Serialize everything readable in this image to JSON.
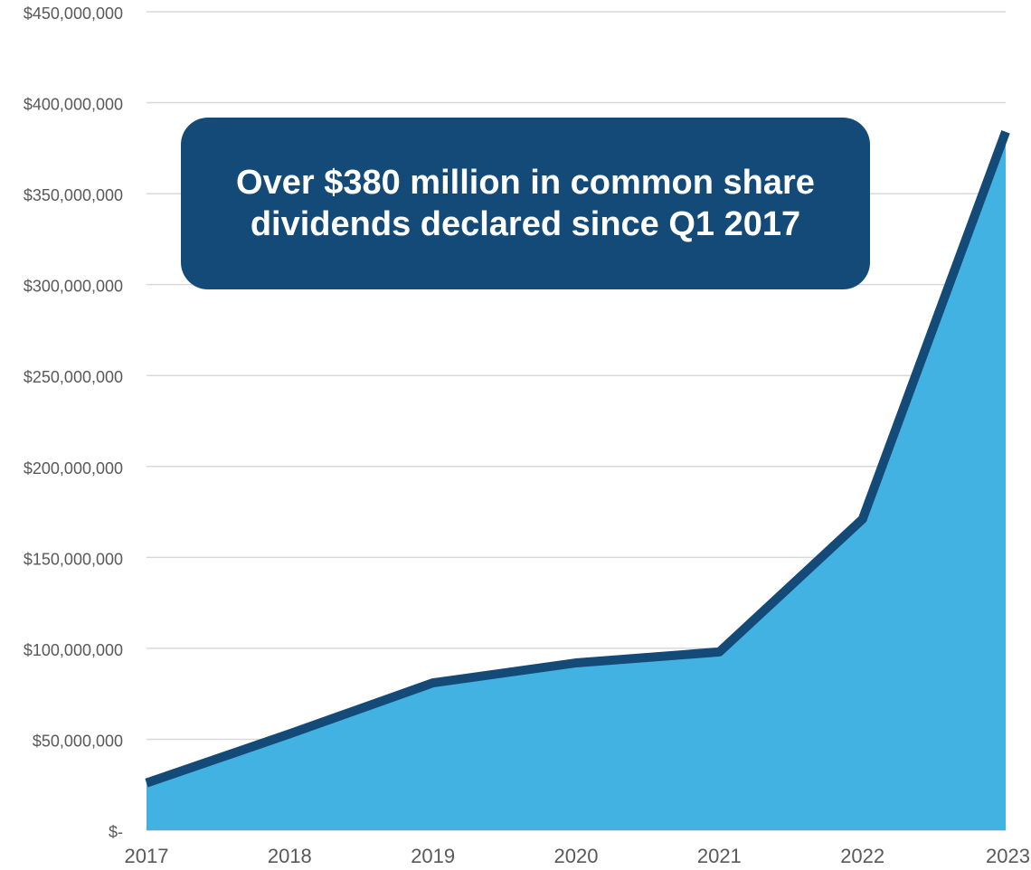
{
  "colors": {
    "area_fill": "#41b2e2",
    "line": "#144a78",
    "gridline": "#d9d9d9",
    "tick_text": "#595959",
    "callout_bg": "#144a78",
    "callout_text": "#ffffff"
  },
  "callout": {
    "text": "Over $380 million in common share dividends declared since Q1 2017"
  },
  "chart_data": {
    "type": "area",
    "title": "",
    "xlabel": "",
    "ylabel": "",
    "categories": [
      "2017",
      "2018",
      "2019",
      "2020",
      "2021",
      "2022",
      "2023"
    ],
    "series": [
      {
        "values": [
          26000000,
          53000000,
          81000000,
          92000000,
          98000000,
          171000000,
          384000000
        ]
      }
    ],
    "ylim": [
      0,
      450000000
    ],
    "y_ticks": [
      0,
      50000000,
      100000000,
      150000000,
      200000000,
      250000000,
      300000000,
      350000000,
      400000000,
      450000000
    ],
    "y_tick_labels": [
      "$-",
      "$50,000,000",
      "$100,000,000",
      "$150,000,000",
      "$200,000,000",
      "$250,000,000",
      "$300,000,000",
      "$350,000,000",
      "$400,000,000",
      "$450,000,000"
    ],
    "grid": true,
    "legend": "none"
  }
}
